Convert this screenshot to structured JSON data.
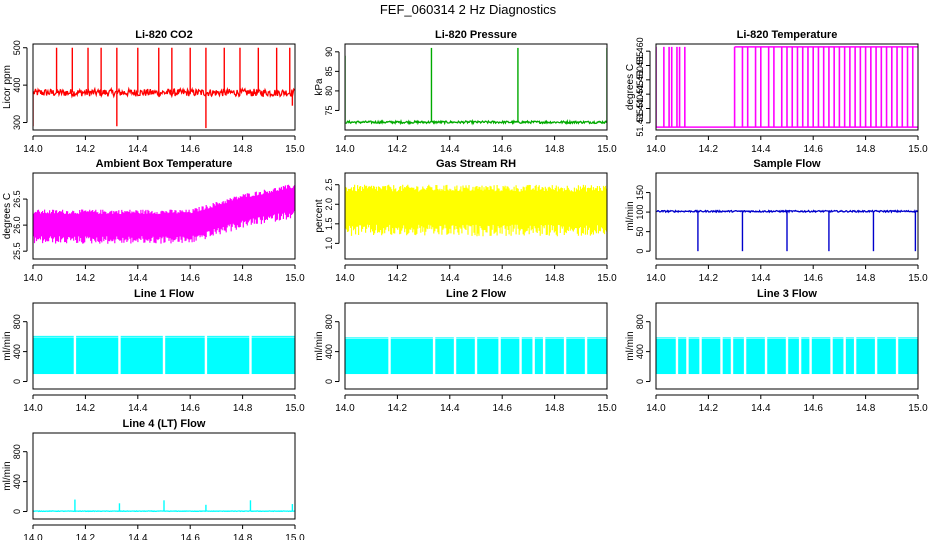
{
  "page": {
    "title": "FEF_060314  2 Hz Diagnostics"
  },
  "chart_data": [
    {
      "id": "co2",
      "type": "line",
      "title": "Li-820 CO2",
      "ylabel": "Licor ppm",
      "color": "#ff0000",
      "style": "spiky",
      "xlim": [
        14.0,
        15.0
      ],
      "ylim": [
        280,
        510
      ],
      "x_ticks": [
        14.0,
        14.2,
        14.4,
        14.6,
        14.8,
        15.0
      ],
      "x_tick_labels": [
        "14.0",
        "14.2",
        "14.4",
        "14.6",
        "14.8",
        "15.0"
      ],
      "y_ticks": [
        300,
        400,
        500
      ],
      "y_tick_labels": [
        "300",
        "400",
        "500"
      ],
      "baseline": 380,
      "noise": 10,
      "spike_x": [
        14.09,
        14.15,
        14.21,
        14.26,
        14.32,
        14.4,
        14.48,
        14.53,
        14.6,
        14.66,
        14.73,
        14.79,
        14.86,
        14.93,
        14.98
      ],
      "spike_values": [
        500,
        500,
        500,
        500,
        500,
        500,
        500,
        500,
        500,
        500,
        500,
        500,
        500,
        500,
        500
      ],
      "dip_x": [
        14.0,
        14.32,
        14.66,
        14.99
      ],
      "dip_values": [
        290,
        290,
        285,
        345
      ]
    },
    {
      "id": "pressure",
      "type": "line",
      "title": "Li-820 Pressure",
      "ylabel": "kPa",
      "color": "#00aa00",
      "style": "spiky",
      "xlim": [
        14.0,
        15.0
      ],
      "ylim": [
        70,
        92
      ],
      "x_ticks": [
        14.0,
        14.2,
        14.4,
        14.6,
        14.8,
        15.0
      ],
      "x_tick_labels": [
        "14.0",
        "14.2",
        "14.4",
        "14.6",
        "14.8",
        "15.0"
      ],
      "y_ticks": [
        75,
        80,
        85,
        90
      ],
      "y_tick_labels": [
        "75",
        "80",
        "85",
        "90"
      ],
      "baseline": 72,
      "noise": 0.3,
      "spike_x": [
        14.0,
        14.33,
        14.66,
        15.0
      ],
      "spike_values": [
        89,
        91,
        91,
        91
      ],
      "dip_x": [],
      "dip_values": []
    },
    {
      "id": "temperature",
      "type": "line",
      "title": "Li-820 Temperature",
      "ylabel": "degrees C",
      "color": "#ff00ff",
      "style": "bands",
      "xlim": [
        14.0,
        15.0
      ],
      "ylim": [
        51.4325,
        51.4625
      ],
      "x_ticks": [
        14.0,
        14.2,
        14.4,
        14.6,
        14.8,
        15.0
      ],
      "x_tick_labels": [
        "14.0",
        "14.2",
        "14.4",
        "14.6",
        "14.8",
        "15.0"
      ],
      "y_ticks": [
        51.435,
        51.44,
        51.445,
        51.45,
        51.455,
        51.46
      ],
      "y_tick_labels": [
        "51.435",
        "51.440",
        "51.445",
        "51.450",
        "51.455",
        "51.460"
      ],
      "low_value": 51.4335,
      "high_value": 51.4615,
      "toggle_x": [
        14.0,
        14.03,
        14.05,
        14.06,
        14.08,
        14.09,
        14.11,
        14.3,
        14.33,
        14.35,
        14.38,
        14.4,
        14.43,
        14.45,
        14.48,
        14.5,
        14.52,
        14.54,
        14.56,
        14.58,
        14.6,
        14.62,
        14.64,
        14.66,
        14.68,
        14.7,
        14.72,
        14.74,
        14.76,
        14.78,
        14.8,
        14.82,
        14.84,
        14.86,
        14.88,
        14.9,
        14.92,
        14.94,
        14.96,
        14.98
      ]
    },
    {
      "id": "ambient",
      "type": "line",
      "title": "Ambient Box Temperature",
      "ylabel": "degrees C",
      "color": "#ff00ff",
      "style": "noise",
      "xlim": [
        14.0,
        15.0
      ],
      "ylim": [
        25.35,
        27.0
      ],
      "x_ticks": [
        14.0,
        14.2,
        14.4,
        14.6,
        14.8,
        15.0
      ],
      "x_tick_labels": [
        "14.0",
        "14.2",
        "14.4",
        "14.6",
        "14.8",
        "15.0"
      ],
      "y_ticks": [
        25.5,
        26.0,
        26.5
      ],
      "y_tick_labels": [
        "25.5",
        "26.0",
        "26.5"
      ],
      "trend_x": [
        14.0,
        14.6,
        14.8,
        15.0
      ],
      "trend_y": [
        26.0,
        26.0,
        26.3,
        26.5
      ],
      "noise": 0.3
    },
    {
      "id": "rh",
      "type": "line",
      "title": "Gas Stream RH",
      "ylabel": "percent",
      "color": "#ffff00",
      "style": "noise",
      "xlim": [
        14.0,
        15.0
      ],
      "ylim": [
        0.6,
        2.8
      ],
      "x_ticks": [
        14.0,
        14.2,
        14.4,
        14.6,
        14.8,
        15.0
      ],
      "x_tick_labels": [
        "14.0",
        "14.2",
        "14.4",
        "14.6",
        "14.8",
        "15.0"
      ],
      "y_ticks": [
        1.0,
        1.5,
        2.0,
        2.5
      ],
      "y_tick_labels": [
        "1.0",
        "1.5",
        "2.0",
        "2.5"
      ],
      "trend_x": [
        14.0,
        15.0
      ],
      "trend_y": [
        1.9,
        1.9
      ],
      "noise": 0.6
    },
    {
      "id": "sample",
      "type": "line",
      "title": "Sample Flow",
      "ylabel": "ml/min",
      "color": "#0000cc",
      "style": "spiky",
      "xlim": [
        14.0,
        15.0
      ],
      "ylim": [
        -20,
        200
      ],
      "x_ticks": [
        14.0,
        14.2,
        14.4,
        14.6,
        14.8,
        15.0
      ],
      "x_tick_labels": [
        "14.0",
        "14.2",
        "14.4",
        "14.6",
        "14.8",
        "15.0"
      ],
      "y_ticks": [
        0,
        50,
        100,
        150
      ],
      "y_tick_labels": [
        "0",
        "50",
        "100",
        "150"
      ],
      "baseline": 102,
      "noise": 2,
      "spike_x": [],
      "spike_values": [],
      "dip_x": [
        14.16,
        14.33,
        14.5,
        14.66,
        14.83,
        14.99
      ],
      "dip_values": [
        0,
        0,
        0,
        0,
        0,
        0
      ]
    },
    {
      "id": "line1",
      "type": "line",
      "title": "Line 1 Flow",
      "ylabel": "ml/min",
      "color": "#00ffff",
      "style": "oscillation",
      "xlim": [
        14.0,
        15.0
      ],
      "ylim": [
        -100,
        1050
      ],
      "x_ticks": [
        14.0,
        14.2,
        14.4,
        14.6,
        14.8,
        15.0
      ],
      "x_tick_labels": [
        "14.0",
        "14.2",
        "14.4",
        "14.6",
        "14.8",
        "15.0"
      ],
      "y_ticks": [
        0,
        400,
        800
      ],
      "y_tick_labels": [
        "0",
        "400",
        "800"
      ],
      "low_value": 100,
      "high_value": 590,
      "gap_x": [
        14.16,
        14.33,
        14.5,
        14.66,
        14.83
      ]
    },
    {
      "id": "line2",
      "type": "line",
      "title": "Line 2 Flow",
      "ylabel": "ml/min",
      "color": "#00ffff",
      "style": "oscillation",
      "xlim": [
        14.0,
        15.0
      ],
      "ylim": [
        -100,
        1050
      ],
      "x_ticks": [
        14.0,
        14.2,
        14.4,
        14.6,
        14.8,
        15.0
      ],
      "x_tick_labels": [
        "14.0",
        "14.2",
        "14.4",
        "14.6",
        "14.8",
        "15.0"
      ],
      "y_ticks": [
        0,
        400,
        800
      ],
      "y_tick_labels": [
        "0",
        "400",
        "800"
      ],
      "low_value": 100,
      "high_value": 570,
      "gap_x": [
        14.17,
        14.34,
        14.42,
        14.5,
        14.59,
        14.67,
        14.72,
        14.76,
        14.84,
        14.92
      ]
    },
    {
      "id": "line3",
      "type": "line",
      "title": "Line 3 Flow",
      "ylabel": "ml/min",
      "color": "#00ffff",
      "style": "oscillation",
      "xlim": [
        14.0,
        15.0
      ],
      "ylim": [
        -100,
        1050
      ],
      "x_ticks": [
        14.0,
        14.2,
        14.4,
        14.6,
        14.8,
        15.0
      ],
      "x_tick_labels": [
        "14.0",
        "14.2",
        "14.4",
        "14.6",
        "14.8",
        "15.0"
      ],
      "y_ticks": [
        0,
        400,
        800
      ],
      "y_tick_labels": [
        "0",
        "400",
        "800"
      ],
      "low_value": 100,
      "high_value": 570,
      "gap_x": [
        14.08,
        14.12,
        14.17,
        14.25,
        14.29,
        14.34,
        14.42,
        14.5,
        14.55,
        14.59,
        14.67,
        14.72,
        14.76,
        14.84,
        14.92
      ]
    },
    {
      "id": "line4",
      "type": "line",
      "title": "Line 4 (LT) Flow",
      "ylabel": "ml/min",
      "color": "#00ffff",
      "style": "spiky",
      "xlim": [
        14.0,
        15.0
      ],
      "ylim": [
        -100,
        1050
      ],
      "x_ticks": [
        14.0,
        14.2,
        14.4,
        14.6,
        14.8,
        15.0
      ],
      "x_tick_labels": [
        "14.0",
        "14.2",
        "14.4",
        "14.6",
        "14.8",
        "15.0"
      ],
      "y_ticks": [
        0,
        400,
        800
      ],
      "y_tick_labels": [
        "0",
        "400",
        "800"
      ],
      "baseline": 5,
      "noise": 3,
      "spike_x": [
        14.16,
        14.33,
        14.5,
        14.66,
        14.83,
        14.99
      ],
      "spike_values": [
        160,
        110,
        150,
        90,
        150,
        100
      ],
      "dip_x": [],
      "dip_values": []
    }
  ]
}
